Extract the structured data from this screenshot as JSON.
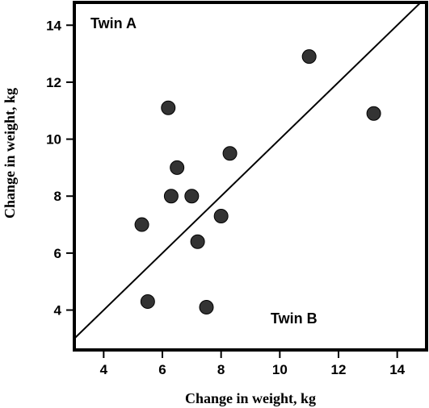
{
  "chart_data": {
    "type": "scatter",
    "xlabel": "Change in weight, kg",
    "ylabel": "Change in weight, kg",
    "xlim": [
      3,
      15
    ],
    "ylim": [
      2.6,
      14.8
    ],
    "xticks": [
      4,
      6,
      8,
      10,
      12,
      14
    ],
    "yticks": [
      4,
      6,
      8,
      10,
      12,
      14
    ],
    "grid": false,
    "identity_line": true,
    "annotations": {
      "top_left": "Twin A",
      "bottom_right": "Twin B"
    },
    "marker_color": "#333333",
    "points": [
      {
        "x": 5.5,
        "y": 4.3
      },
      {
        "x": 7.5,
        "y": 4.1
      },
      {
        "x": 5.3,
        "y": 7.0
      },
      {
        "x": 7.2,
        "y": 6.4
      },
      {
        "x": 8.0,
        "y": 7.3
      },
      {
        "x": 6.3,
        "y": 8.0
      },
      {
        "x": 7.0,
        "y": 8.0
      },
      {
        "x": 6.5,
        "y": 9.0
      },
      {
        "x": 8.3,
        "y": 9.5
      },
      {
        "x": 6.2,
        "y": 11.1
      },
      {
        "x": 11.0,
        "y": 12.9
      },
      {
        "x": 13.2,
        "y": 10.9
      }
    ]
  }
}
